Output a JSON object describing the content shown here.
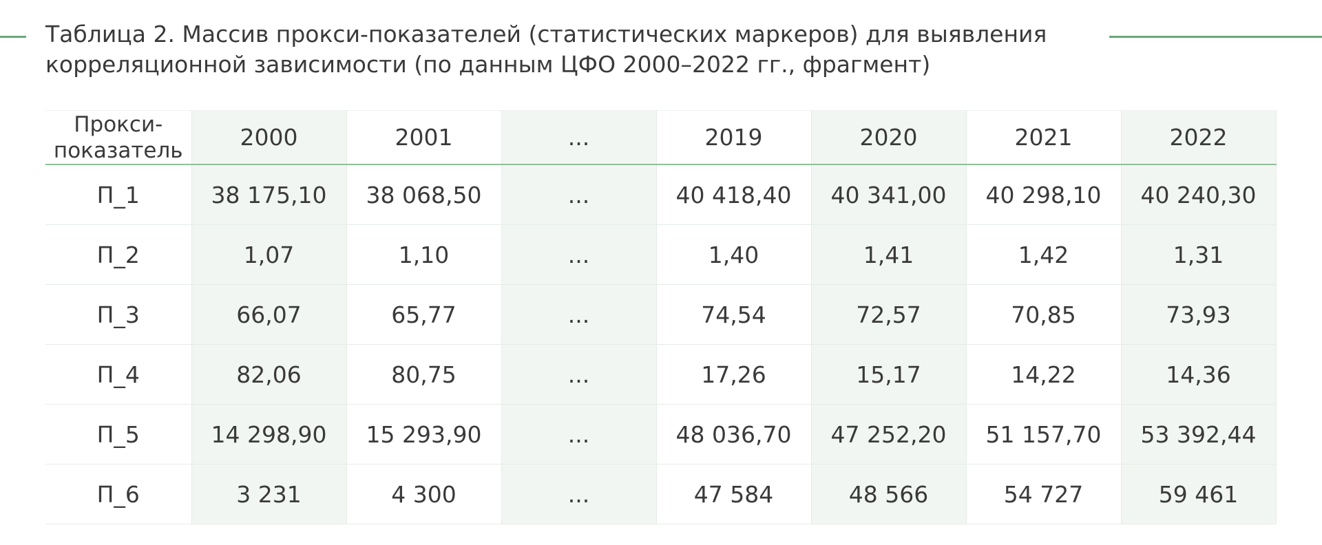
{
  "caption": "Таблица 2. Массив прокси-показателей (статистических маркеров) для выявления корреляционной зависимости (по данным ЦФО 2000–2022 гг., фрагмент)",
  "table": {
    "header": {
      "label": "Прокси-показатель",
      "years": [
        "2000",
        "2001",
        "...",
        "2019",
        "2020",
        "2021",
        "2022"
      ]
    },
    "rows": [
      {
        "label": "П_1",
        "values": [
          "38 175,10",
          "38 068,50",
          "...",
          "40 418,40",
          "40 341,00",
          "40 298,10",
          "40 240,30"
        ]
      },
      {
        "label": "П_2",
        "values": [
          "1,07",
          "1,10",
          "...",
          "1,40",
          "1,41",
          "1,42",
          "1,31"
        ]
      },
      {
        "label": "П_3",
        "values": [
          "66,07",
          "65,77",
          "...",
          "74,54",
          "72,57",
          "70,85",
          "73,93"
        ]
      },
      {
        "label": "П_4",
        "values": [
          "82,06",
          "80,75",
          "...",
          "17,26",
          "15,17",
          "14,22",
          "14,36"
        ]
      },
      {
        "label": "П_5",
        "values": [
          "14 298,90",
          "15 293,90",
          "...",
          "48 036,70",
          "47 252,20",
          "51 157,70",
          "53 392,44"
        ]
      },
      {
        "label": "П_6",
        "values": [
          "3 231",
          "4 300",
          "...",
          "47 584",
          "48 566",
          "54 727",
          "59 461"
        ]
      }
    ]
  },
  "colors": {
    "rule": "#6aa77a",
    "shade": "#f2f6f2",
    "header_rule": "#8fbf98"
  }
}
